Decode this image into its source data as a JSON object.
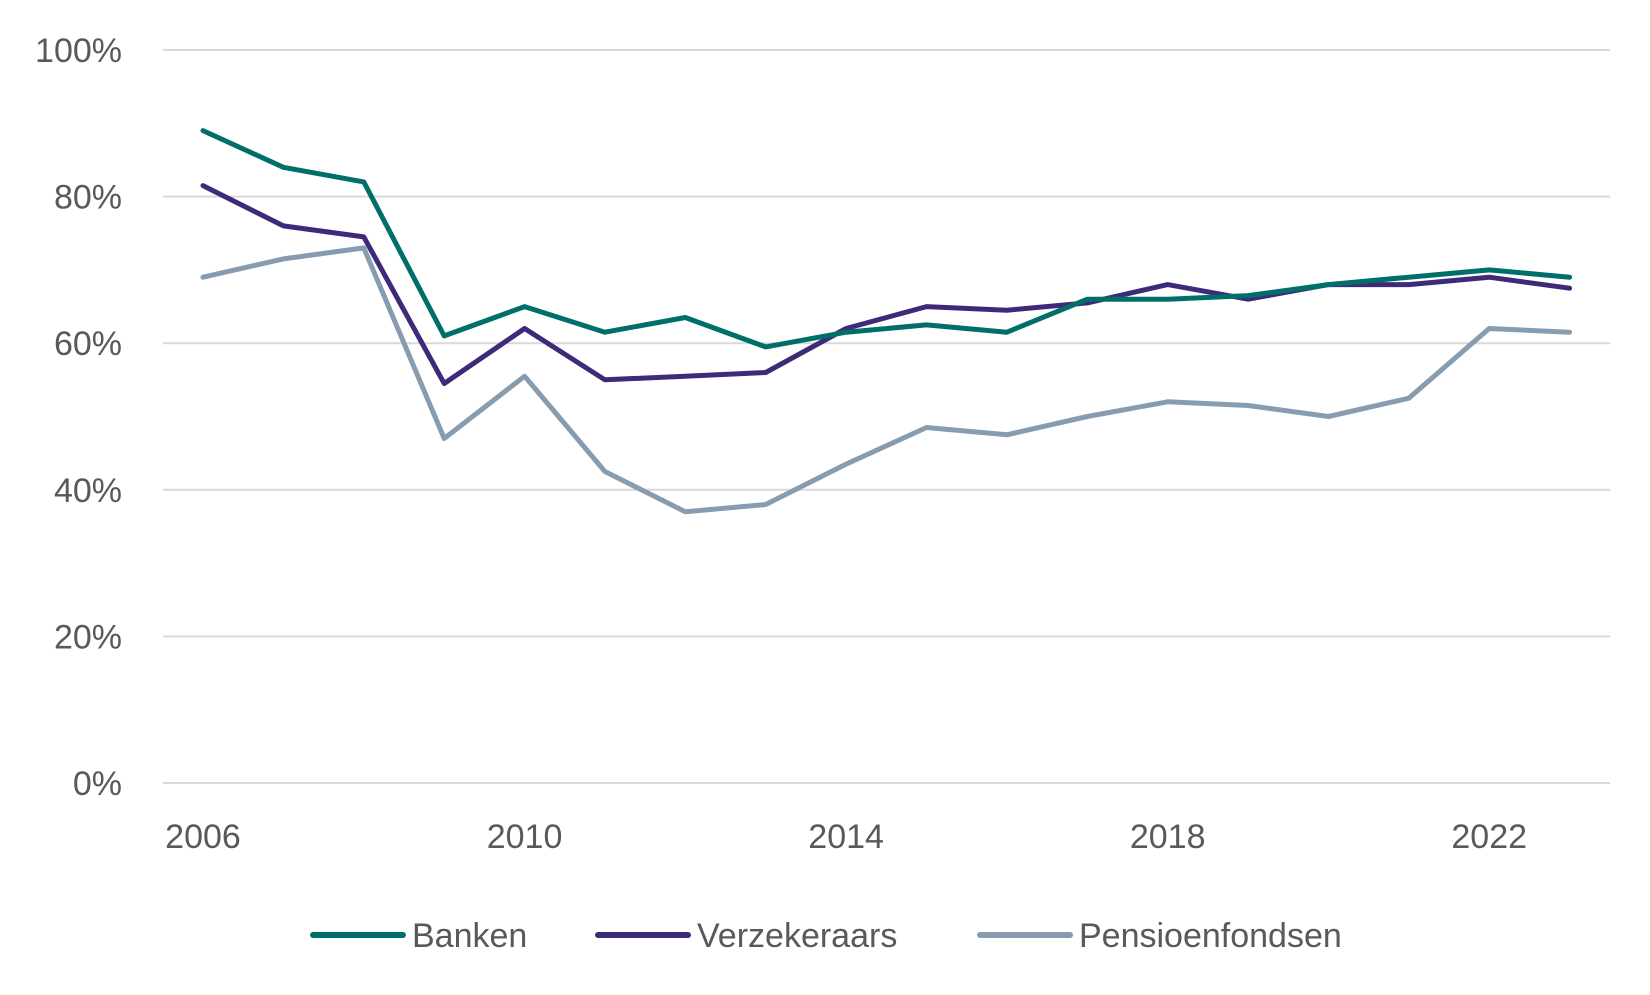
{
  "chart_data": {
    "type": "line",
    "title": "",
    "xlabel": "",
    "ylabel": "",
    "x": [
      2006,
      2007,
      2008,
      2009,
      2010,
      2011,
      2012,
      2013,
      2014,
      2015,
      2016,
      2017,
      2018,
      2019,
      2020,
      2021,
      2022,
      2023
    ],
    "x_ticks": [
      "2006",
      "2010",
      "2014",
      "2018",
      "2022"
    ],
    "y_ticks": [
      "0%",
      "20%",
      "40%",
      "60%",
      "80%",
      "100%"
    ],
    "ylim": [
      0,
      100
    ],
    "xlim": [
      2006,
      2024
    ],
    "grid": "horizontal",
    "legend_position": "bottom",
    "series": [
      {
        "name": "Banken",
        "color": "#006F6A",
        "values": [
          89,
          84,
          82,
          61,
          65,
          61.5,
          63.5,
          59.5,
          61.5,
          62.5,
          61.5,
          66,
          66,
          66.5,
          68,
          69,
          70,
          69
        ]
      },
      {
        "name": "Verzekeraars",
        "color": "#3E2A78",
        "values": [
          81.5,
          76,
          74.5,
          54.5,
          62,
          55,
          55.5,
          56,
          62,
          65,
          64.5,
          65.5,
          68,
          66,
          68,
          68,
          69,
          67.5
        ]
      },
      {
        "name": "Pensioenfondsen",
        "color": "#889CB0",
        "values": [
          69,
          71.5,
          73,
          47,
          55.5,
          42.5,
          37,
          38,
          43.5,
          48.5,
          47.5,
          50,
          52,
          51.5,
          50,
          52.5,
          62,
          61.5
        ]
      }
    ]
  }
}
